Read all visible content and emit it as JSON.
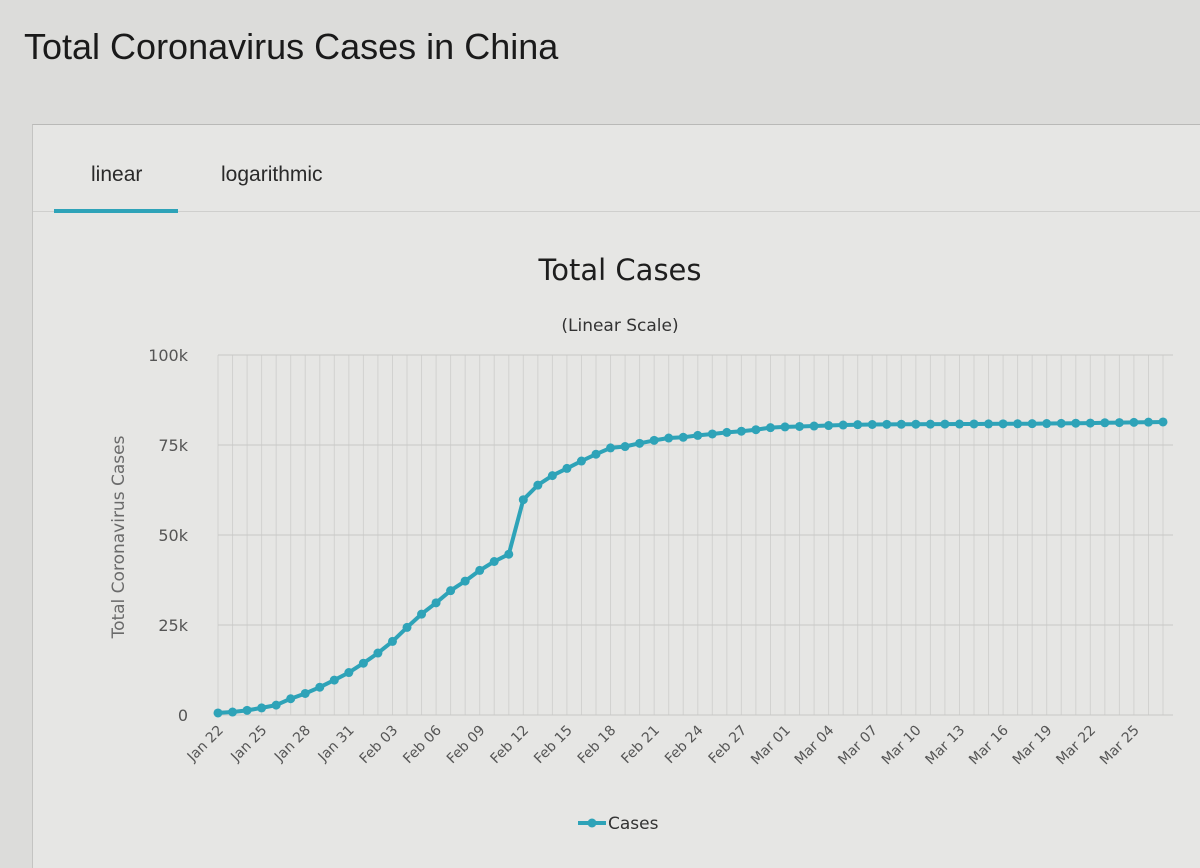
{
  "page": {
    "title": "Total Coronavirus Cases in China"
  },
  "tabs": [
    {
      "label": "linear",
      "active": true
    },
    {
      "label": "logarithmic",
      "active": false
    }
  ],
  "colors": {
    "series": "#2ea3b8",
    "tab_accent": "#2ea3b8"
  },
  "chart_data": {
    "type": "line",
    "title": "Total Cases",
    "subtitle": "(Linear Scale)",
    "xlabel": "",
    "ylabel": "Total Coronavirus Cases",
    "ylim": [
      0,
      100000
    ],
    "y_ticks": [
      {
        "value": 0,
        "label": "0"
      },
      {
        "value": 25000,
        "label": "25k"
      },
      {
        "value": 50000,
        "label": "50k"
      },
      {
        "value": 75000,
        "label": "75k"
      },
      {
        "value": 100000,
        "label": "100k"
      }
    ],
    "grid": true,
    "legend": "bottom-center",
    "x_tick_labels": [
      "Jan 22",
      "Jan 25",
      "Jan 28",
      "Jan 31",
      "Feb 03",
      "Feb 06",
      "Feb 09",
      "Feb 12",
      "Feb 15",
      "Feb 18",
      "Feb 21",
      "Feb 24",
      "Feb 27",
      "Mar 01",
      "Mar 04",
      "Mar 07",
      "Mar 10",
      "Mar 13",
      "Mar 16",
      "Mar 19",
      "Mar 22",
      "Mar 25"
    ],
    "x": [
      "Jan 22",
      "Jan 23",
      "Jan 24",
      "Jan 25",
      "Jan 26",
      "Jan 27",
      "Jan 28",
      "Jan 29",
      "Jan 30",
      "Jan 31",
      "Feb 01",
      "Feb 02",
      "Feb 03",
      "Feb 04",
      "Feb 05",
      "Feb 06",
      "Feb 07",
      "Feb 08",
      "Feb 09",
      "Feb 10",
      "Feb 11",
      "Feb 12",
      "Feb 13",
      "Feb 14",
      "Feb 15",
      "Feb 16",
      "Feb 17",
      "Feb 18",
      "Feb 19",
      "Feb 20",
      "Feb 21",
      "Feb 22",
      "Feb 23",
      "Feb 24",
      "Feb 25",
      "Feb 26",
      "Feb 27",
      "Feb 28",
      "Feb 29",
      "Mar 01",
      "Mar 02",
      "Mar 03",
      "Mar 04",
      "Mar 05",
      "Mar 06",
      "Mar 07",
      "Mar 08",
      "Mar 09",
      "Mar 10",
      "Mar 11",
      "Mar 12",
      "Mar 13",
      "Mar 14",
      "Mar 15",
      "Mar 16",
      "Mar 17",
      "Mar 18",
      "Mar 19",
      "Mar 20",
      "Mar 21",
      "Mar 22",
      "Mar 23",
      "Mar 24",
      "Mar 25",
      "Mar 26",
      "Mar 27"
    ],
    "series": [
      {
        "name": "Cases",
        "values": [
          571,
          830,
          1287,
          1975,
          2744,
          4515,
          5974,
          7711,
          9692,
          11791,
          14380,
          17205,
          20438,
          24324,
          28018,
          31161,
          34546,
          37198,
          40171,
          42638,
          44653,
          59804,
          63851,
          66492,
          68500,
          70548,
          72436,
          74185,
          74576,
          75465,
          76288,
          76936,
          77150,
          77658,
          78064,
          78497,
          78824,
          79251,
          79824,
          80026,
          80151,
          80270,
          80409,
          80552,
          80651,
          80695,
          80735,
          80754,
          80778,
          80793,
          80813,
          80824,
          80844,
          80860,
          80881,
          80894,
          80928,
          80967,
          81008,
          81054,
          81093,
          81171,
          81218,
          81285,
          81340,
          81394
        ]
      }
    ]
  }
}
